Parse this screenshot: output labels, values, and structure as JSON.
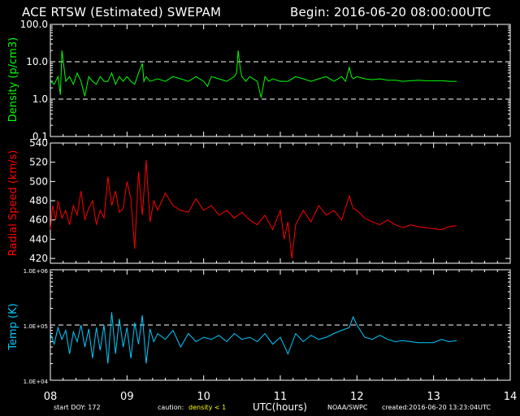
{
  "header": {
    "title": "ACE RTSW (Estimated) SWEPAM",
    "begin": "Begin: 2016-06-20 08:00:00UTC"
  },
  "footer": {
    "start_doy": "start DOY: 172",
    "caution_label": "caution:",
    "caution_value": "density < 1",
    "xlabel": "UTC(hours)",
    "agency": "NOAA/SWPC",
    "created": "created:2016-06-20 13:23:04UTC"
  },
  "colors": {
    "density": "#00ff00",
    "speed": "#ff0000",
    "temp": "#00ccff",
    "axes": "#ffffff",
    "caution": "#ffff00",
    "background": "#000000"
  },
  "chart_data": [
    {
      "type": "line",
      "ylabel": "Density (p/cm3)",
      "yscale": "log",
      "ylim": [
        0.1,
        100.0
      ],
      "yticks": [
        "0.1",
        "1.0",
        "10.0",
        "100.0"
      ],
      "reference_lines": [
        1.0,
        10.0
      ],
      "xlim": [
        8,
        14
      ],
      "series": [
        {
          "x": [
            8.0,
            8.05,
            8.1,
            8.13,
            8.15,
            8.2,
            8.25,
            8.3,
            8.35,
            8.4,
            8.45,
            8.5,
            8.55,
            8.6,
            8.65,
            8.7,
            8.75,
            8.8,
            8.85,
            8.9,
            8.95,
            9.0,
            9.05,
            9.1,
            9.15,
            9.2,
            9.22,
            9.25,
            9.3,
            9.4,
            9.5,
            9.6,
            9.7,
            9.8,
            9.9,
            10.0,
            10.05,
            10.1,
            10.2,
            10.3,
            10.4,
            10.43,
            10.45,
            10.48,
            10.5,
            10.55,
            10.6,
            10.7,
            10.75,
            10.8,
            10.85,
            10.9,
            11.0,
            11.1,
            11.2,
            11.3,
            11.4,
            11.5,
            11.6,
            11.7,
            11.8,
            11.85,
            11.9,
            11.93,
            11.95,
            12.0,
            12.1,
            12.2,
            12.3,
            12.4,
            12.5,
            12.6,
            12.7,
            12.8,
            12.9,
            13.1,
            13.2,
            13.3
          ],
          "y": [
            3,
            2.5,
            4,
            1.3,
            20,
            3,
            4,
            2.5,
            5,
            3,
            1.2,
            4,
            3,
            2.5,
            4,
            3,
            3,
            5,
            2.5,
            4,
            3,
            4,
            3,
            2.5,
            5,
            9,
            3,
            4,
            3,
            3.5,
            3,
            4,
            3.5,
            3,
            4,
            3,
            2.2,
            4,
            3.5,
            3,
            4,
            5,
            20,
            6,
            4,
            3,
            4,
            3,
            1.1,
            4,
            3,
            3.5,
            3,
            3,
            4,
            3.5,
            3,
            3.5,
            4,
            3,
            4,
            3,
            7,
            4,
            3.5,
            4,
            3.5,
            3.3,
            3.5,
            3.2,
            3.2,
            3.0,
            3.1,
            3.2,
            3.1,
            3.1,
            3.0,
            3.0
          ]
        }
      ]
    },
    {
      "type": "line",
      "ylabel": "Radial Speed (km/s)",
      "ylim": [
        415,
        540
      ],
      "yticks": [
        "420",
        "440",
        "460",
        "480",
        "500",
        "520",
        "540"
      ],
      "xlim": [
        8,
        14
      ],
      "series": [
        {
          "x": [
            8.0,
            8.03,
            8.07,
            8.1,
            8.15,
            8.2,
            8.25,
            8.3,
            8.35,
            8.4,
            8.45,
            8.5,
            8.55,
            8.6,
            8.65,
            8.7,
            8.75,
            8.8,
            8.85,
            8.9,
            8.95,
            9.0,
            9.05,
            9.1,
            9.15,
            9.2,
            9.25,
            9.3,
            9.35,
            9.4,
            9.5,
            9.6,
            9.7,
            9.8,
            9.9,
            10.0,
            10.1,
            10.2,
            10.3,
            10.4,
            10.5,
            10.6,
            10.7,
            10.8,
            10.9,
            11.0,
            11.05,
            11.1,
            11.15,
            11.2,
            11.3,
            11.4,
            11.5,
            11.6,
            11.7,
            11.8,
            11.9,
            11.95,
            12.0,
            12.1,
            12.2,
            12.3,
            12.4,
            12.5,
            12.6,
            12.7,
            12.8,
            12.9,
            13.1,
            13.2,
            13.3
          ],
          "y": [
            450,
            475,
            460,
            480,
            462,
            470,
            455,
            475,
            465,
            490,
            460,
            472,
            480,
            455,
            470,
            462,
            505,
            475,
            490,
            468,
            472,
            500,
            482,
            430,
            510,
            465,
            522,
            458,
            480,
            470,
            488,
            475,
            470,
            468,
            482,
            470,
            475,
            465,
            470,
            462,
            468,
            460,
            455,
            465,
            450,
            470,
            440,
            458,
            420,
            455,
            470,
            458,
            475,
            465,
            470,
            460,
            485,
            472,
            470,
            462,
            458,
            455,
            460,
            455,
            452,
            455,
            453,
            452,
            450,
            453,
            454
          ]
        }
      ]
    },
    {
      "type": "line",
      "ylabel": "Temp (K)",
      "yscale": "log",
      "ylim": [
        10000,
        1000000
      ],
      "yticks": [
        "1.0E+04",
        "1.0E+05",
        "1.0E+06"
      ],
      "reference_lines": [
        100000
      ],
      "xlim": [
        8,
        14
      ],
      "xticks": [
        "08",
        "09",
        "10",
        "11",
        "12",
        "13",
        "14"
      ],
      "series": [
        {
          "x": [
            8.0,
            8.05,
            8.1,
            8.15,
            8.2,
            8.25,
            8.3,
            8.35,
            8.4,
            8.45,
            8.5,
            8.55,
            8.6,
            8.65,
            8.7,
            8.75,
            8.8,
            8.85,
            8.9,
            8.95,
            9.0,
            9.05,
            9.1,
            9.15,
            9.2,
            9.25,
            9.3,
            9.35,
            9.4,
            9.5,
            9.6,
            9.7,
            9.8,
            9.9,
            10.0,
            10.1,
            10.2,
            10.3,
            10.4,
            10.5,
            10.6,
            10.7,
            10.8,
            10.9,
            11.0,
            11.1,
            11.2,
            11.3,
            11.4,
            11.5,
            11.6,
            11.7,
            11.8,
            11.9,
            11.95,
            12.0,
            12.1,
            12.2,
            12.3,
            12.4,
            12.5,
            12.6,
            12.7,
            12.8,
            13.0,
            13.1,
            13.2,
            13.3
          ],
          "y": [
            70000,
            45000,
            90000,
            55000,
            80000,
            30000,
            75000,
            50000,
            100000,
            40000,
            85000,
            25000,
            90000,
            35000,
            100000,
            20000,
            170000,
            30000,
            130000,
            40000,
            90000,
            25000,
            110000,
            45000,
            150000,
            20000,
            85000,
            50000,
            70000,
            55000,
            80000,
            40000,
            70000,
            50000,
            60000,
            55000,
            65000,
            50000,
            70000,
            55000,
            60000,
            50000,
            70000,
            45000,
            60000,
            30000,
            70000,
            50000,
            65000,
            55000,
            60000,
            70000,
            80000,
            90000,
            140000,
            100000,
            60000,
            55000,
            65000,
            55000,
            50000,
            52000,
            50000,
            48000,
            48000,
            55000,
            50000,
            52000
          ]
        }
      ]
    }
  ]
}
